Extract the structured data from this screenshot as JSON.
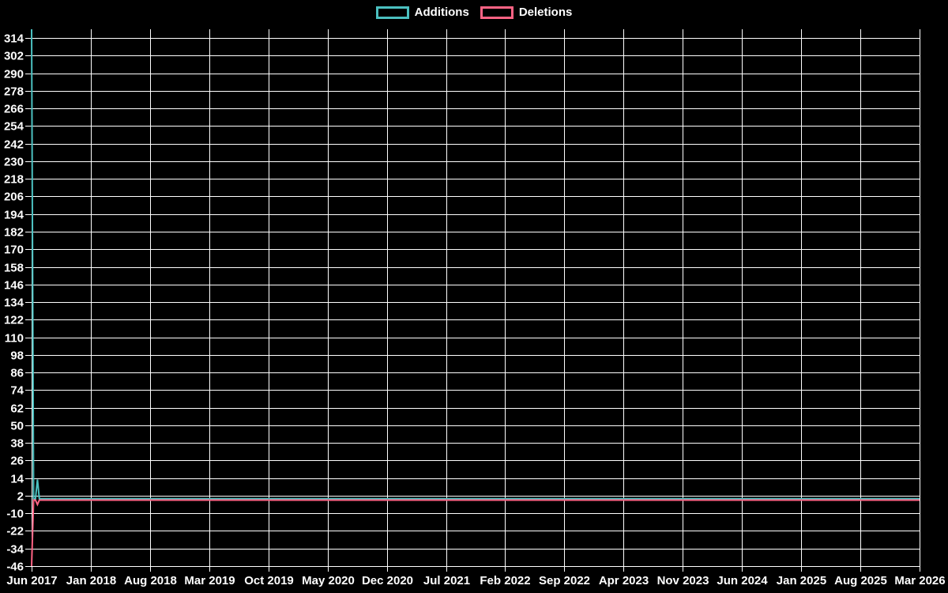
{
  "chart_data": {
    "type": "line",
    "title": "",
    "background_color": "#000000",
    "grid_color": "#ffffff",
    "text_color": "#ffffff",
    "legend_position": "top",
    "x_ticks": [
      "Jun 2017",
      "Jan 2018",
      "Aug 2018",
      "Mar 2019",
      "Oct 2019",
      "May 2020",
      "Dec 2020",
      "Jul 2021",
      "Feb 2022",
      "Sep 2022",
      "Apr 2023",
      "Nov 2023",
      "Jun 2024",
      "Jan 2025",
      "Aug 2025",
      "Mar 2026"
    ],
    "x_tick_interval_months": 7,
    "x_axis_span_weeks": 456.5,
    "y_ticks": [
      314,
      302,
      290,
      278,
      266,
      254,
      242,
      230,
      218,
      206,
      194,
      182,
      170,
      158,
      146,
      134,
      122,
      110,
      98,
      86,
      74,
      62,
      50,
      38,
      26,
      14,
      2,
      -10,
      -22,
      -34,
      -46
    ],
    "y_axis": {
      "min": -46,
      "max": 320
    },
    "series": [
      {
        "name": "Additions",
        "color": "#4bc0c0",
        "points_weekly": [
          [
            0,
            320
          ],
          [
            1,
            0
          ],
          [
            2,
            0
          ],
          [
            3,
            13
          ],
          [
            4,
            0
          ]
        ],
        "flat_value": 0
      },
      {
        "name": "Deletions",
        "color": "#ff6384",
        "points_weekly": [
          [
            0,
            -46
          ],
          [
            1,
            -1
          ],
          [
            2,
            -1
          ],
          [
            3,
            -4
          ],
          [
            4,
            -1
          ]
        ],
        "flat_value": -1
      }
    ]
  }
}
